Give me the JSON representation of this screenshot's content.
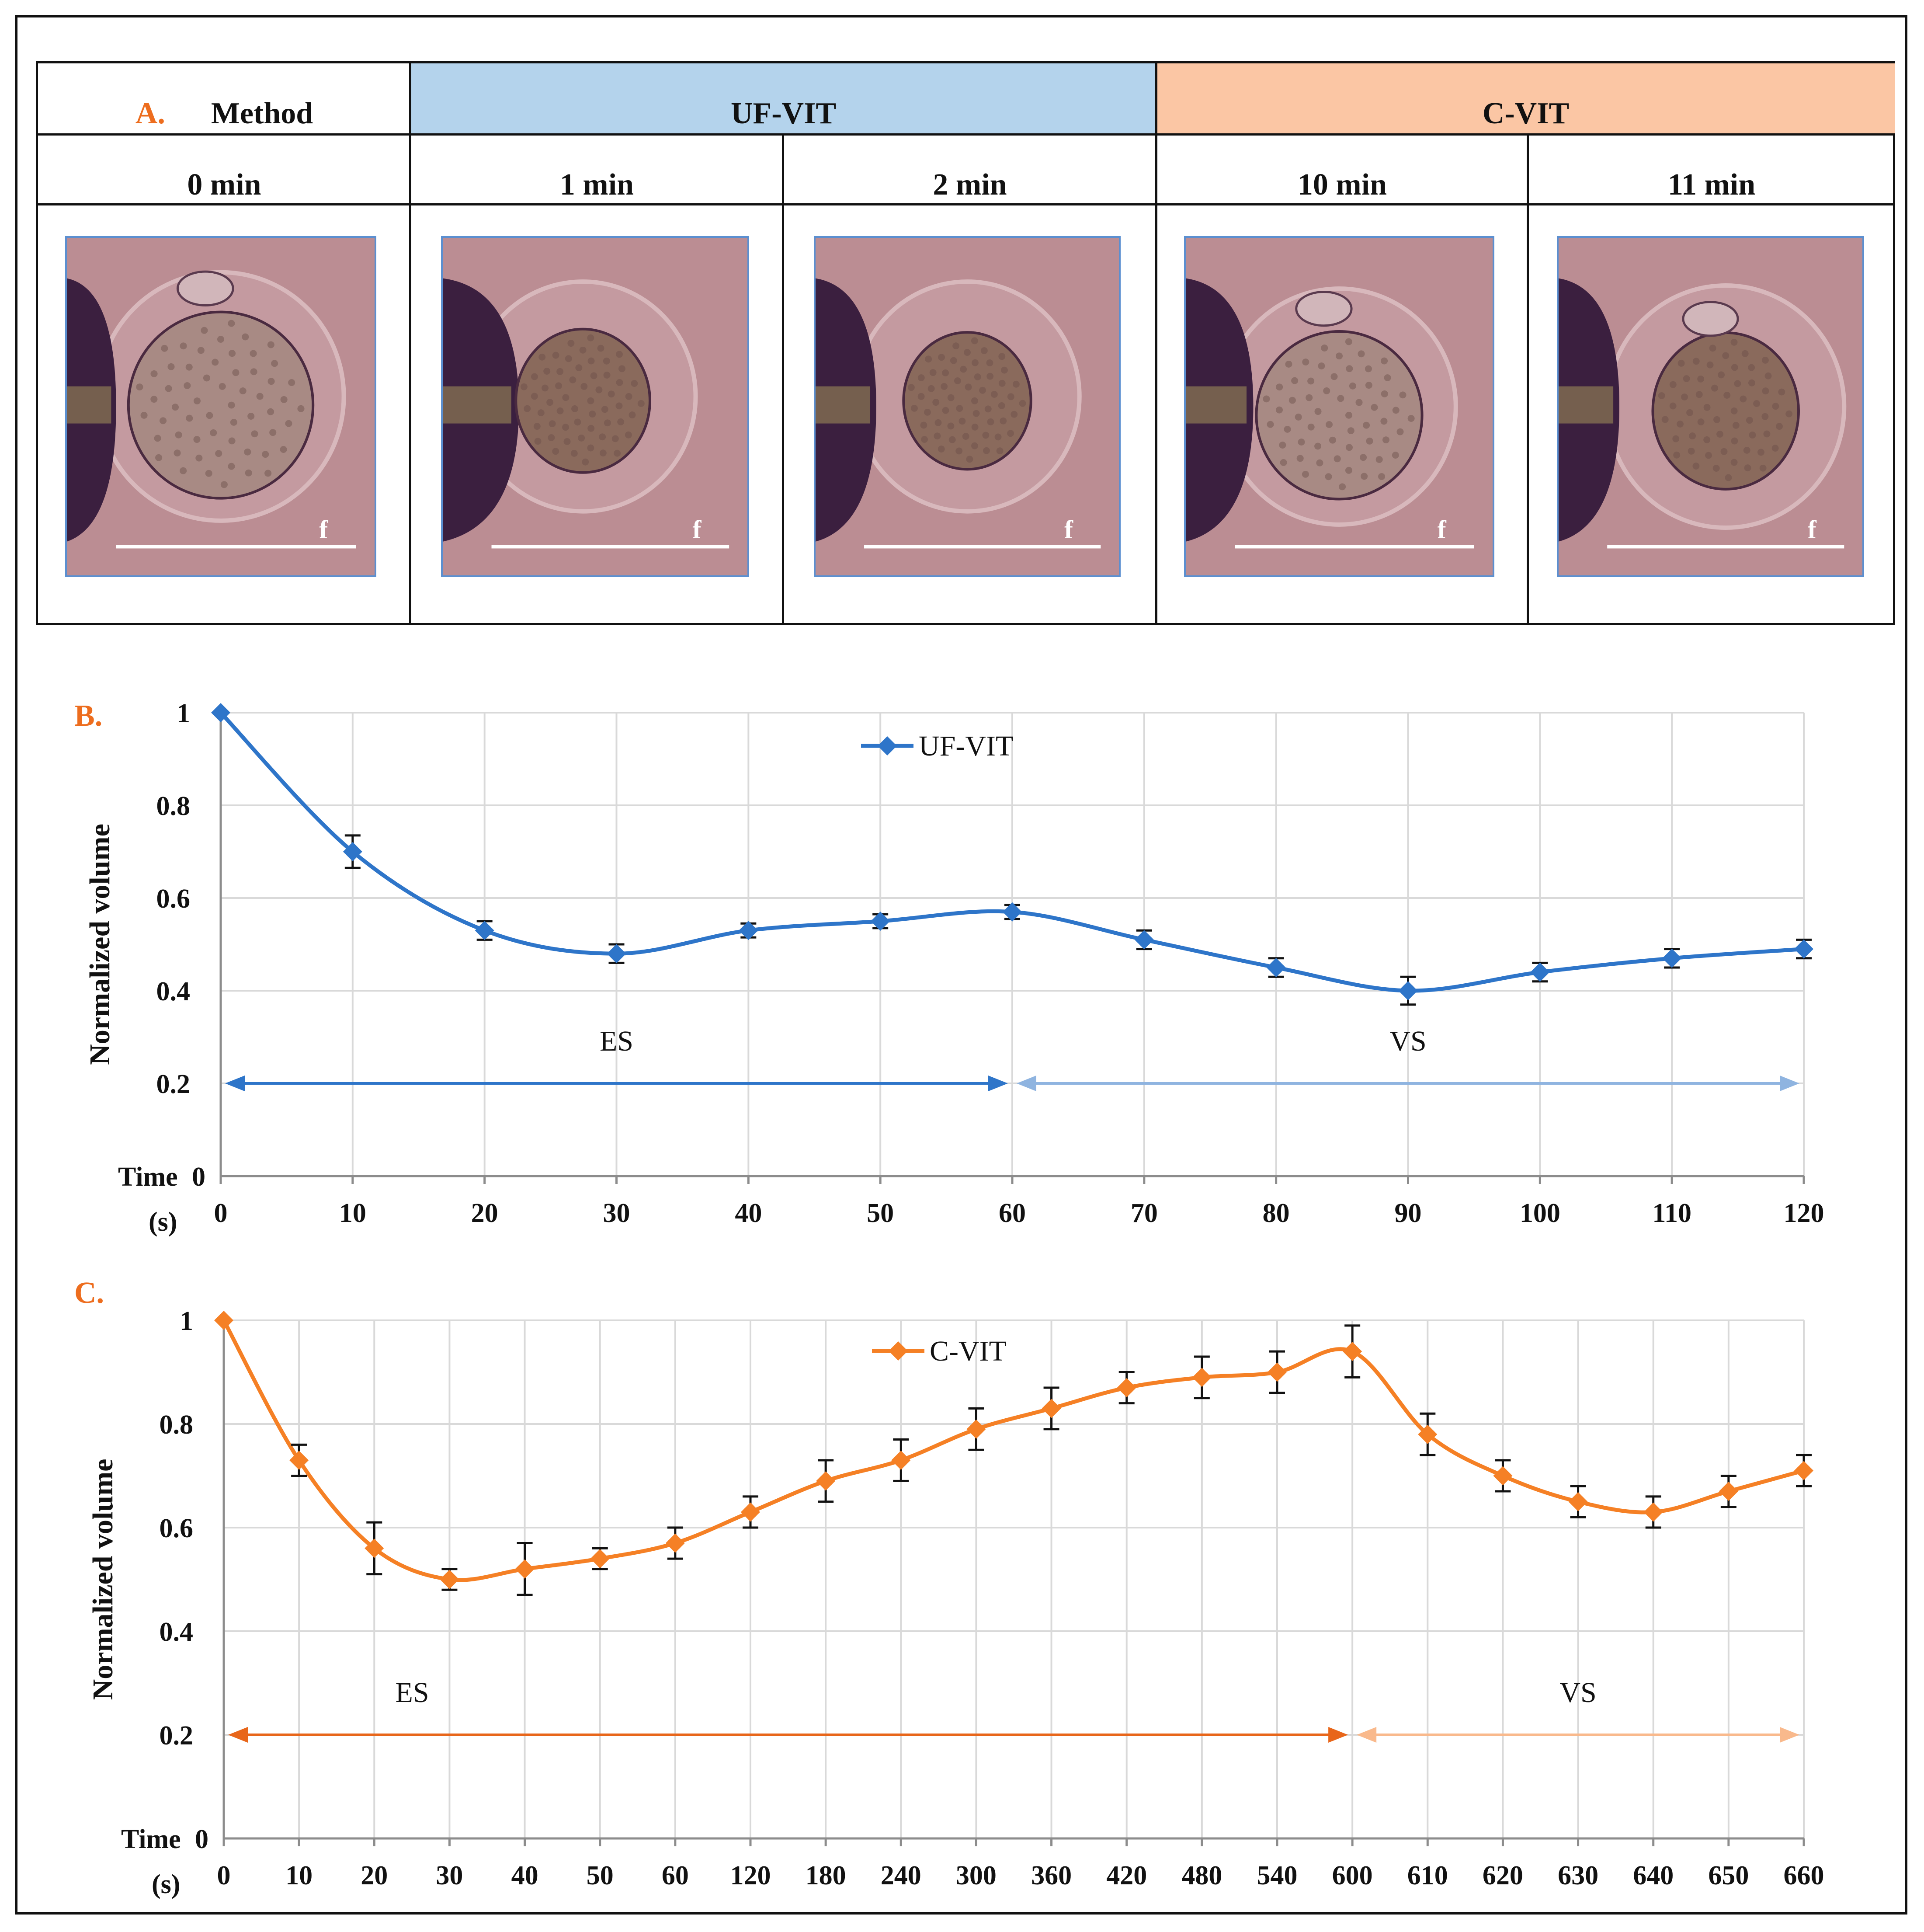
{
  "panel_a": {
    "letter": "A.",
    "method_label": "Method",
    "group_labels": [
      "UF-VIT",
      "C-VIT"
    ],
    "group_colors": [
      "#b4d3ec",
      "#fbc6a4"
    ],
    "time_labels": [
      "0 min",
      "1 min",
      "2 min",
      "10 min",
      "11 min"
    ],
    "image_tag": "f",
    "images": [
      {
        "name": "oocyte-0min",
        "state": "spherical cell with polar body"
      },
      {
        "name": "oocyte-1min",
        "state": "shrunken cell"
      },
      {
        "name": "oocyte-2min",
        "state": "shrunken cell"
      },
      {
        "name": "oocyte-10min",
        "state": "spherical cell"
      },
      {
        "name": "oocyte-11min",
        "state": "shrunken cell"
      }
    ]
  },
  "chart_data": [
    {
      "panel_letter": "B.",
      "type": "line",
      "ylabel": "Normalized volume",
      "xlabel_line1": "Time",
      "xlabel_line2": "(s)",
      "categories": [
        "0",
        "10",
        "20",
        "30",
        "40",
        "50",
        "60",
        "70",
        "80",
        "90",
        "100",
        "110",
        "120"
      ],
      "yticks": [
        "0",
        "0.2",
        "0.4",
        "0.6",
        "0.8",
        "1"
      ],
      "ylim": [
        0,
        1
      ],
      "grid": true,
      "legend_position": "top-center",
      "series": [
        {
          "name": "UF-VIT",
          "color": "#2e75c9",
          "values": [
            1,
            0.7,
            0.53,
            0.48,
            0.53,
            0.55,
            0.57,
            0.51,
            0.45,
            0.4,
            0.44,
            0.47,
            0.49
          ],
          "errors": [
            0,
            0.035,
            0.02,
            0.02,
            0.015,
            0.015,
            0.015,
            0.02,
            0.02,
            0.03,
            0.02,
            0.02,
            0.02
          ]
        }
      ],
      "annotations": [
        {
          "label": "ES",
          "from": "0",
          "to": "60",
          "y": 0.2,
          "color": "#2e75c9"
        },
        {
          "label": "VS",
          "from": "60",
          "to": "120",
          "y": 0.2,
          "color": "#8fb4e0"
        }
      ]
    },
    {
      "panel_letter": "C.",
      "type": "line",
      "ylabel": "Normalized volume",
      "xlabel_line1": "Time",
      "xlabel_line2": "(s)",
      "categories": [
        "0",
        "10",
        "20",
        "30",
        "40",
        "50",
        "60",
        "120",
        "180",
        "240",
        "300",
        "360",
        "420",
        "480",
        "540",
        "600",
        "610",
        "620",
        "630",
        "640",
        "650",
        "660"
      ],
      "yticks": [
        "0",
        "0.2",
        "0.4",
        "0.6",
        "0.8",
        "1"
      ],
      "ylim": [
        0,
        1
      ],
      "grid": true,
      "legend_position": "top-center",
      "series": [
        {
          "name": "C-VIT",
          "color": "#f58025",
          "values": [
            1,
            0.73,
            0.56,
            0.5,
            0.52,
            0.54,
            0.57,
            0.63,
            0.69,
            0.73,
            0.79,
            0.83,
            0.87,
            0.89,
            0.9,
            0.94,
            0.78,
            0.7,
            0.65,
            0.63,
            0.67,
            0.71
          ],
          "errors": [
            0,
            0.03,
            0.05,
            0.02,
            0.05,
            0.02,
            0.03,
            0.03,
            0.04,
            0.04,
            0.04,
            0.04,
            0.03,
            0.04,
            0.04,
            0.05,
            0.04,
            0.03,
            0.03,
            0.03,
            0.03,
            0.03
          ]
        }
      ],
      "annotations": [
        {
          "label": "ES",
          "from": "0",
          "to": "600",
          "y": 0.2,
          "color": "#e8661a"
        },
        {
          "label": "VS",
          "from": "600",
          "to": "660",
          "y": 0.2,
          "color": "#f9b98c"
        }
      ]
    }
  ]
}
